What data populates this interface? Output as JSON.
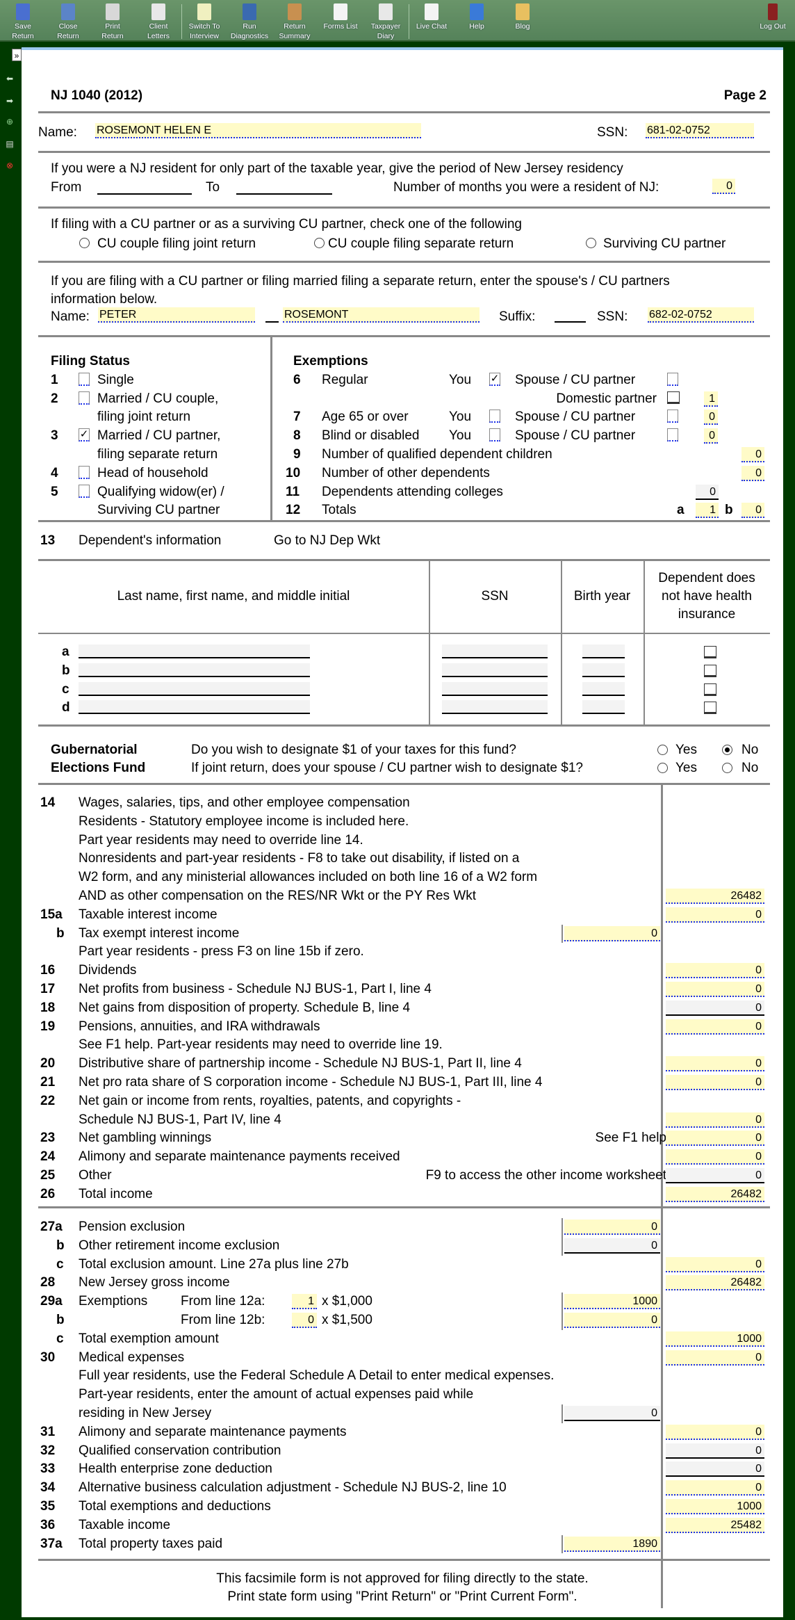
{
  "toolbar": {
    "buttons": [
      {
        "l1": "Save",
        "l2": "Return",
        "icon": "save-icon",
        "color": "#4a6fd0"
      },
      {
        "l1": "Close",
        "l2": "Return",
        "icon": "close-return-icon",
        "color": "#5b84c8"
      },
      {
        "l1": "Print",
        "l2": "Return",
        "icon": "printer-icon",
        "color": "#d8d8d8"
      },
      {
        "l1": "Client",
        "l2": "Letters",
        "icon": "envelope-icon",
        "color": "#e8e8e8"
      },
      {
        "l1": "Switch To",
        "l2": "Interview",
        "icon": "interview-icon",
        "color": "#f0f0c0"
      },
      {
        "l1": "Run",
        "l2": "Diagnostics",
        "icon": "diagnostics-icon",
        "color": "#3a6ab0"
      },
      {
        "l1": "Return",
        "l2": "Summary",
        "icon": "clipboard-icon",
        "color": "#c89050"
      },
      {
        "l1": "Forms List",
        "l2": "",
        "icon": "list-icon",
        "color": "#f4f4f4"
      },
      {
        "l1": "Taxpayer",
        "l2": "Diary",
        "icon": "diary-icon",
        "color": "#e8e8e8"
      },
      {
        "l1": "Live Chat",
        "l2": "",
        "icon": "chat-icon",
        "color": "#f4f4f4"
      },
      {
        "l1": "Help",
        "l2": "",
        "icon": "help-icon",
        "color": "#3a7ad8"
      },
      {
        "l1": "Blog",
        "l2": "",
        "icon": "blog-icon",
        "color": "#e8c060"
      }
    ],
    "logout": "Log Out"
  },
  "expander": "»",
  "form": {
    "title": "NJ 1040 (2012)",
    "page": "Page 2",
    "name_label": "Name:",
    "name": "ROSEMONT HELEN E",
    "ssn_label": "SSN:",
    "ssn": "681-02-0752",
    "residency": {
      "text": "If you were a NJ resident for only part of the taxable year, give the period of New Jersey residency",
      "from": "From",
      "to": "To",
      "months_label": "Number of months you were a resident of NJ:",
      "months": "0"
    },
    "cu": {
      "text": "If filing with a CU partner or as a surviving CU partner, check one of the following",
      "opt1": "CU couple filing joint return",
      "opt2": "CU couple filing separate return",
      "opt3": "Surviving CU partner"
    },
    "spouse": {
      "text1": "If you are filing with a CU partner or filing married filing a separate return, enter the spouse's / CU partners",
      "text2": "information below.",
      "name_label": "Name:",
      "first": "PETER",
      "last": "ROSEMONT",
      "suffix_label": "Suffix:",
      "ssn_label": "SSN:",
      "ssn": "682-02-0752"
    },
    "filing": {
      "title": "Filing Status",
      "items": [
        {
          "n": "1",
          "l1": "Single",
          "l2": "",
          "checked": false
        },
        {
          "n": "2",
          "l1": "Married / CU couple,",
          "l2": "filing joint return",
          "checked": false
        },
        {
          "n": "3",
          "l1": "Married / CU partner,",
          "l2": "filing separate return",
          "checked": true
        },
        {
          "n": "4",
          "l1": "Head of household",
          "l2": "",
          "checked": false
        },
        {
          "n": "5",
          "l1": "Qualifying widow(er) /",
          "l2": "Surviving CU partner",
          "checked": false
        }
      ]
    },
    "exemptions": {
      "title": "Exemptions",
      "you": "You",
      "spouse": "Spouse / CU partner",
      "l6": {
        "n": "6",
        "label": "Regular",
        "you_checked": true,
        "spouse_checked": false
      },
      "domestic": "Domestic partner",
      "domestic_val": "1",
      "l7": {
        "n": "7",
        "label": "Age 65 or over",
        "val": "0"
      },
      "l8": {
        "n": "8",
        "label": "Blind or disabled",
        "val": "0"
      },
      "l9": {
        "n": "9",
        "label": "Number of qualified dependent children",
        "val": "0"
      },
      "l10": {
        "n": "10",
        "label": "Number of other dependents",
        "val": "0"
      },
      "l11": {
        "n": "11",
        "label": "Dependents attending colleges",
        "val": "0"
      },
      "l12": {
        "n": "12",
        "label": "Totals",
        "a": "a",
        "a_val": "1",
        "b": "b",
        "b_val": "0"
      }
    },
    "dep": {
      "n": "13",
      "label": "Dependent's information",
      "link": "Go to NJ Dep Wkt",
      "headers": [
        "Last name, first name, and middle initial",
        "SSN",
        "Birth year",
        "Dependent does not have health insurance"
      ],
      "rows": [
        "a",
        "b",
        "c",
        "d"
      ]
    },
    "guber": {
      "l1": "Gubernatorial",
      "l2": "Elections Fund",
      "q1": "Do you wish to designate $1 of your taxes for this fund?",
      "q2": "If joint return, does your spouse / CU partner wish to designate $1?",
      "yes": "Yes",
      "no": "No",
      "q1_answer": "No",
      "q2_answer": ""
    },
    "income": [
      {
        "n": "14",
        "t": "Wages, salaries, tips, and other employee compensation"
      },
      {
        "t": "Residents - Statutory employee income is included here."
      },
      {
        "t": "Part year residents may need to override line 14."
      },
      {
        "t": "Nonresidents and part-year residents - F8 to take out disability, if listed on a"
      },
      {
        "t": "W2 form, and any ministerial allowances included on both line 16 of a W2 form"
      },
      {
        "t": "AND as other compensation on the RES/NR Wkt or the PY Res Wkt",
        "r": "26482",
        "rs": "y"
      },
      {
        "n": "15a",
        "t": "Taxable interest income",
        "r": "0",
        "rs": "y"
      },
      {
        "n": "b",
        "t": "Tax exempt interest income",
        "m": "0",
        "ms": "y"
      },
      {
        "t": "Part year residents - press F3 on line 15b if zero."
      },
      {
        "n": "16",
        "t": "Dividends",
        "r": "0",
        "rs": "y"
      },
      {
        "n": "17",
        "t": "Net profits from business - Schedule NJ BUS-1, Part I, line 4",
        "r": "0",
        "rs": "y"
      },
      {
        "n": "18",
        "t": "Net gains from disposition of property.  Schedule B, line 4",
        "r": "0",
        "rs": "g"
      },
      {
        "n": "19",
        "t": "Pensions, annuities, and IRA withdrawals",
        "r": "0",
        "rs": "y"
      },
      {
        "t": "See F1 help.  Part-year residents may need to override line 19."
      },
      {
        "n": "20",
        "t": "Distributive share of partnership income - Schedule NJ BUS-1, Part II, line 4",
        "r": "0",
        "rs": "y"
      },
      {
        "n": "21",
        "t": "Net pro rata share of S corporation income - Schedule NJ BUS-1, Part III, line 4",
        "r": "0",
        "rs": "y"
      },
      {
        "n": "22",
        "t": "Net gain or income from rents, royalties, patents, and copyrights -"
      },
      {
        "t": "Schedule NJ BUS-1, Part IV, line 4",
        "r": "0",
        "rs": "y"
      },
      {
        "n": "23",
        "t": "Net gambling winnings",
        "note": "See F1 help",
        "r": "0",
        "rs": "y"
      },
      {
        "n": "24",
        "t": "Alimony and separate maintenance payments received",
        "r": "0",
        "rs": "y"
      },
      {
        "n": "25",
        "t": "Other",
        "note": "F9 to access the other income worksheet",
        "r": "0",
        "rs": "g"
      },
      {
        "n": "26",
        "t": "Total income",
        "r": "26482",
        "rs": "y"
      }
    ],
    "deductions": [
      {
        "n": "27a",
        "t": "Pension exclusion",
        "m": "0",
        "ms": "y"
      },
      {
        "n": "b",
        "t": "Other retirement income exclusion",
        "m": "0",
        "ms": "g"
      },
      {
        "n": "c",
        "t": "Total exclusion amount.  Line 27a plus line 27b",
        "r": "0",
        "rs": "y"
      },
      {
        "n": "28",
        "t": "New Jersey gross income",
        "r": "26482",
        "rs": "y"
      },
      {
        "n": "29a",
        "t": "Exemptions",
        "sub": "From line 12a:",
        "sv": "1",
        "mult": "x $1,000",
        "m": "1000",
        "ms": "y"
      },
      {
        "n": "b",
        "t": "",
        "sub": "From line 12b:",
        "sv": "0",
        "mult": "x $1,500",
        "m": "0",
        "ms": "y"
      },
      {
        "n": "c",
        "t": "Total exemption amount",
        "r": "1000",
        "rs": "y"
      },
      {
        "n": "30",
        "t": "Medical expenses",
        "r": "0",
        "rs": "y"
      },
      {
        "t": "Full year residents, use the Federal Schedule A Detail to enter medical expenses."
      },
      {
        "t": "Part-year residents, enter the amount of actual expenses paid while"
      },
      {
        "t": "residing in New Jersey",
        "m": "0",
        "ms": "g"
      },
      {
        "n": "31",
        "t": "Alimony and separate maintenance payments",
        "r": "0",
        "rs": "y"
      },
      {
        "n": "32",
        "t": "Qualified conservation contribution",
        "r": "0",
        "rs": "g"
      },
      {
        "n": "33",
        "t": "Health enterprise zone deduction",
        "r": "0",
        "rs": "g"
      },
      {
        "n": "34",
        "t": "Alternative business calculation adjustment - Schedule NJ BUS-2, line 10",
        "r": "0",
        "rs": "y"
      },
      {
        "n": "35",
        "t": "Total exemptions and deductions",
        "r": "1000",
        "rs": "y"
      },
      {
        "n": "36",
        "t": "Taxable income",
        "r": "25482",
        "rs": "y"
      },
      {
        "n": "37a",
        "t": "Total property taxes paid",
        "m": "1890",
        "ms": "y"
      }
    ],
    "footer1": "This facsimile form is not approved for filing directly to the state.",
    "footer2": "Print state form using \"Print Return\" or \"Print Current Form\"."
  },
  "colors": {
    "background": "#003a00",
    "toolbar": "#5e8a5e",
    "field": "#fffbc8",
    "calc_field": "#f3f3f3",
    "underline": "#1a2ee8"
  }
}
